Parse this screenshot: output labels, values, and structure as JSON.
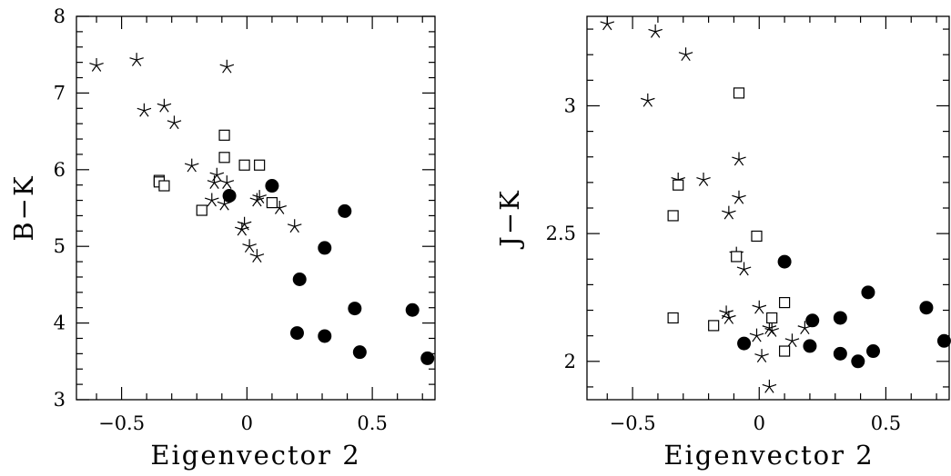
{
  "chart_data": [
    {
      "type": "scatter",
      "xlabel": "Eigenvector 2",
      "ylabel": "B−K",
      "xlim": [
        -0.68,
        0.75
      ],
      "ylim": [
        3,
        8
      ],
      "xticks": [
        -0.5,
        0,
        0.5
      ],
      "xtick_labels": [
        "−0.5",
        "0",
        "0.5"
      ],
      "yticks": [
        3,
        4,
        5,
        6,
        7,
        8
      ],
      "ytick_labels": [
        "3",
        "4",
        "5",
        "6",
        "7",
        "8"
      ],
      "grid": false,
      "series": [
        {
          "marker": "star",
          "points": [
            {
              "x": -0.6,
              "y": 7.36
            },
            {
              "x": -0.44,
              "y": 7.43
            },
            {
              "x": -0.08,
              "y": 7.34
            },
            {
              "x": -0.41,
              "y": 6.77
            },
            {
              "x": -0.33,
              "y": 6.83
            },
            {
              "x": -0.29,
              "y": 6.61
            },
            {
              "x": -0.22,
              "y": 6.05
            },
            {
              "x": -0.12,
              "y": 5.93
            },
            {
              "x": -0.13,
              "y": 5.83
            },
            {
              "x": -0.08,
              "y": 5.83
            },
            {
              "x": -0.14,
              "y": 5.6
            },
            {
              "x": -0.09,
              "y": 5.55
            },
            {
              "x": 0.05,
              "y": 5.64
            },
            {
              "x": 0.04,
              "y": 5.6
            },
            {
              "x": 0.13,
              "y": 5.5
            },
            {
              "x": -0.01,
              "y": 5.29
            },
            {
              "x": -0.02,
              "y": 5.22
            },
            {
              "x": 0.19,
              "y": 5.26
            },
            {
              "x": 0.01,
              "y": 5.0
            },
            {
              "x": 0.04,
              "y": 4.87
            }
          ]
        },
        {
          "marker": "open-square",
          "points": [
            {
              "x": -0.09,
              "y": 6.45
            },
            {
              "x": -0.09,
              "y": 6.16
            },
            {
              "x": -0.01,
              "y": 6.06
            },
            {
              "x": 0.05,
              "y": 6.06
            },
            {
              "x": -0.35,
              "y": 5.86
            },
            {
              "x": -0.35,
              "y": 5.84
            },
            {
              "x": -0.33,
              "y": 5.79
            },
            {
              "x": 0.1,
              "y": 5.57
            },
            {
              "x": -0.18,
              "y": 5.47
            }
          ]
        },
        {
          "marker": "filled-circle",
          "points": [
            {
              "x": 0.1,
              "y": 5.79
            },
            {
              "x": -0.07,
              "y": 5.66
            },
            {
              "x": 0.39,
              "y": 5.46
            },
            {
              "x": 0.31,
              "y": 4.98
            },
            {
              "x": 0.21,
              "y": 4.57
            },
            {
              "x": 0.43,
              "y": 4.19
            },
            {
              "x": 0.66,
              "y": 4.17
            },
            {
              "x": 0.2,
              "y": 3.87
            },
            {
              "x": 0.31,
              "y": 3.83
            },
            {
              "x": 0.45,
              "y": 3.62
            },
            {
              "x": 0.72,
              "y": 3.54
            }
          ]
        }
      ]
    },
    {
      "type": "scatter",
      "xlabel": "Eigenvector 2",
      "ylabel": "J−K",
      "xlim": [
        -0.68,
        0.75
      ],
      "ylim": [
        1.85,
        3.35
      ],
      "xticks": [
        -0.5,
        0,
        0.5
      ],
      "xtick_labels": [
        "−0.5",
        "0",
        "0.5"
      ],
      "yticks": [
        2,
        2.5,
        3
      ],
      "ytick_labels": [
        "2",
        "2.5",
        "3"
      ],
      "grid": false,
      "series": [
        {
          "marker": "star",
          "points": [
            {
              "x": -0.6,
              "y": 3.32
            },
            {
              "x": -0.41,
              "y": 3.29
            },
            {
              "x": -0.29,
              "y": 3.2
            },
            {
              "x": -0.44,
              "y": 3.02
            },
            {
              "x": -0.08,
              "y": 2.79
            },
            {
              "x": -0.32,
              "y": 2.71
            },
            {
              "x": -0.22,
              "y": 2.71
            },
            {
              "x": -0.08,
              "y": 2.64
            },
            {
              "x": -0.12,
              "y": 2.58
            },
            {
              "x": -0.09,
              "y": 2.42
            },
            {
              "x": -0.06,
              "y": 2.36
            },
            {
              "x": -0.13,
              "y": 2.19
            },
            {
              "x": -0.12,
              "y": 2.17
            },
            {
              "x": 0.0,
              "y": 2.21
            },
            {
              "x": 0.04,
              "y": 2.13
            },
            {
              "x": 0.05,
              "y": 2.12
            },
            {
              "x": 0.18,
              "y": 2.13
            },
            {
              "x": -0.01,
              "y": 2.1
            },
            {
              "x": 0.13,
              "y": 2.08
            },
            {
              "x": 0.01,
              "y": 2.02
            },
            {
              "x": 0.04,
              "y": 1.9
            }
          ]
        },
        {
          "marker": "open-square",
          "points": [
            {
              "x": -0.08,
              "y": 3.05
            },
            {
              "x": -0.32,
              "y": 2.69
            },
            {
              "x": -0.34,
              "y": 2.57
            },
            {
              "x": -0.01,
              "y": 2.49
            },
            {
              "x": -0.09,
              "y": 2.41
            },
            {
              "x": 0.1,
              "y": 2.23
            },
            {
              "x": -0.34,
              "y": 2.17
            },
            {
              "x": 0.05,
              "y": 2.17
            },
            {
              "x": -0.18,
              "y": 2.14
            },
            {
              "x": 0.1,
              "y": 2.04
            }
          ]
        },
        {
          "marker": "filled-circle",
          "points": [
            {
              "x": 0.1,
              "y": 2.39
            },
            {
              "x": 0.43,
              "y": 2.27
            },
            {
              "x": 0.66,
              "y": 2.21
            },
            {
              "x": 0.21,
              "y": 2.16
            },
            {
              "x": 0.32,
              "y": 2.17
            },
            {
              "x": -0.06,
              "y": 2.07
            },
            {
              "x": 0.2,
              "y": 2.06
            },
            {
              "x": 0.73,
              "y": 2.08
            },
            {
              "x": 0.45,
              "y": 2.04
            },
            {
              "x": 0.32,
              "y": 2.03
            },
            {
              "x": 0.39,
              "y": 2.0
            }
          ]
        }
      ]
    }
  ]
}
